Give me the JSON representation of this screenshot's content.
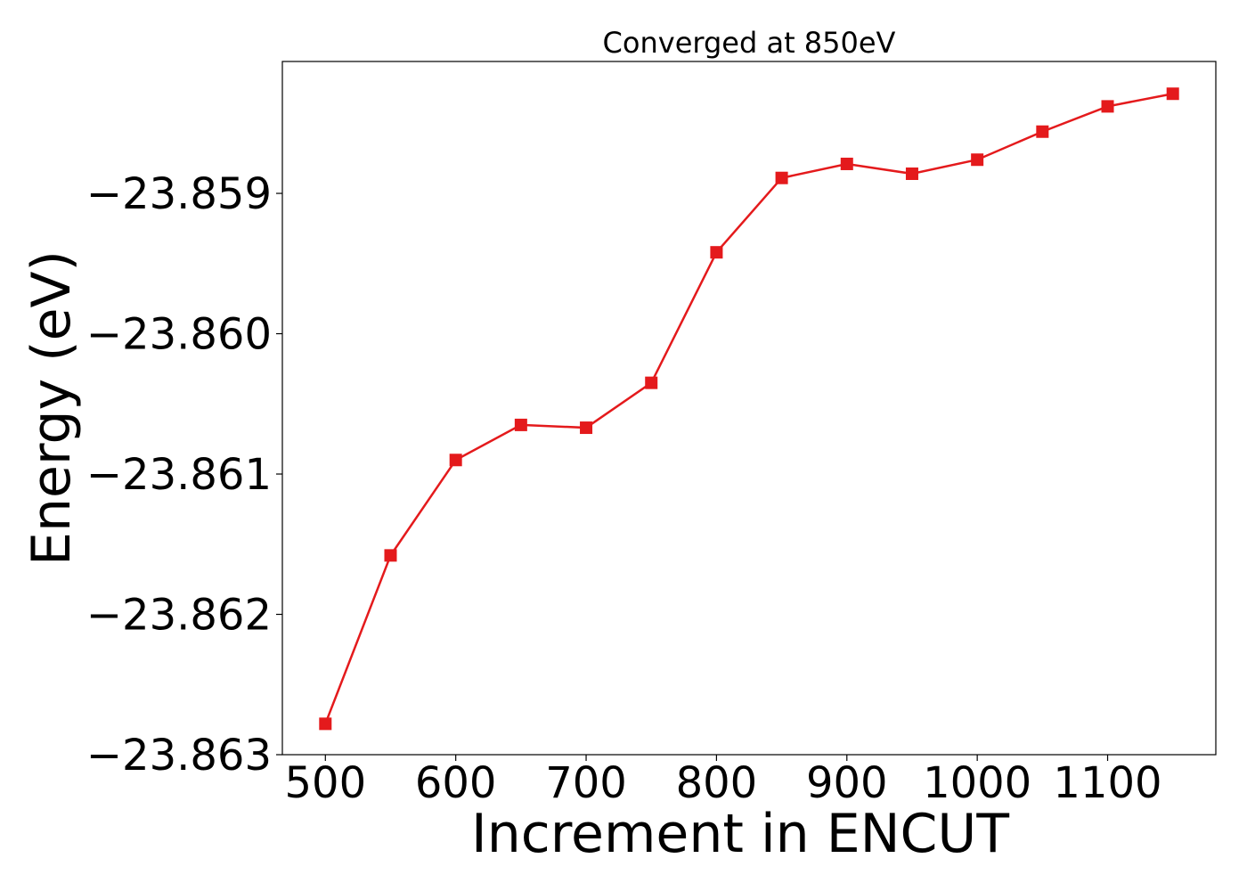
{
  "chart_data": {
    "type": "line",
    "title": "Converged at 850eV",
    "xlabel": "Increment in ENCUT",
    "ylabel": "Energy (eV)",
    "xlim": [
      467,
      1183
    ],
    "ylim": [
      -23.863,
      -23.85806
    ],
    "x_ticks": [
      500,
      600,
      700,
      800,
      900,
      1000,
      1100
    ],
    "x_tick_labels": [
      "500",
      "600",
      "700",
      "800",
      "900",
      "1000",
      "1100"
    ],
    "y_ticks": [
      -23.863,
      -23.862,
      -23.861,
      -23.86,
      -23.859
    ],
    "y_tick_labels": [
      "−23.863",
      "−23.862",
      "−23.861",
      "−23.860",
      "−23.859"
    ],
    "grid": false,
    "series": [
      {
        "color": "#e41a1c",
        "marker": "square",
        "x": [
          500,
          550,
          600,
          650,
          700,
          750,
          800,
          850,
          900,
          950,
          1000,
          1050,
          1100,
          1150
        ],
        "y": [
          -23.86278,
          -23.86158,
          -23.8609,
          -23.86065,
          -23.86067,
          -23.86035,
          -23.85942,
          -23.85889,
          -23.85879,
          -23.85886,
          -23.85876,
          -23.85856,
          -23.85838,
          -23.85829
        ]
      }
    ]
  }
}
